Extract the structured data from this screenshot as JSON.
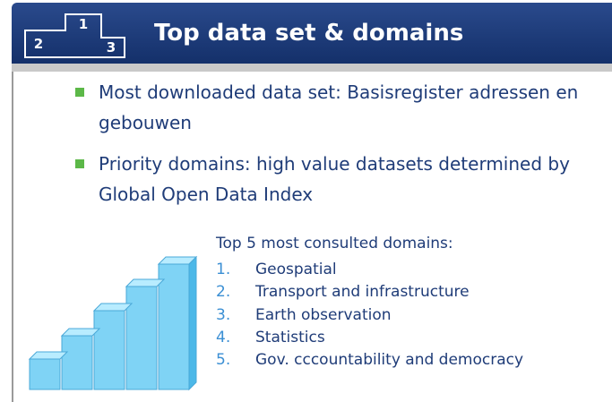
{
  "header": {
    "icon_numbers": [
      "1",
      "2",
      "3"
    ],
    "title": "Top data set & domains"
  },
  "bullets": [
    "Most downloaded data set: Basisregister adressen en gebouwen",
    "Priority domains: high value datasets determined by Global Open Data Index"
  ],
  "domains": {
    "heading": "Top 5 most consulted domains:",
    "items": [
      {
        "number": "1.",
        "label": "Geospatial"
      },
      {
        "number": "2.",
        "label": "Transport and infrastructure"
      },
      {
        "number": "3.",
        "label": "Earth observation"
      },
      {
        "number": "4.",
        "label": "Statistics"
      },
      {
        "number": "5.",
        "label": "Gov. cccountability and democracy"
      }
    ]
  }
}
